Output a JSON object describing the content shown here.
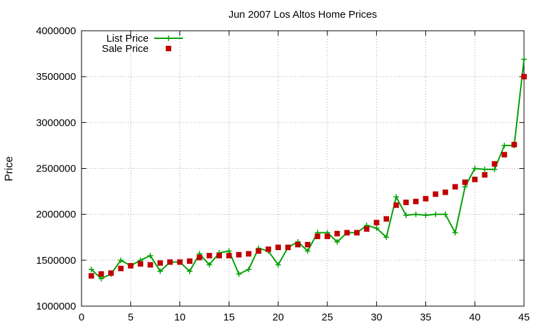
{
  "chart_data": {
    "type": "line",
    "title": "Jun 2007 Los Altos Home Prices",
    "xlabel": "",
    "ylabel": "Price",
    "xlim": [
      0,
      45
    ],
    "ylim": [
      1000000,
      4000000
    ],
    "xticks": [
      0,
      5,
      10,
      15,
      20,
      25,
      30,
      35,
      40,
      45
    ],
    "yticks": [
      1000000,
      1500000,
      2000000,
      2500000,
      3000000,
      3500000,
      4000000
    ],
    "grid": true,
    "legend_position": "top-left",
    "series": [
      {
        "name": "List Price",
        "style": "line-with-plus-markers",
        "color": "#00a000",
        "x": [
          1,
          2,
          3,
          4,
          5,
          6,
          7,
          8,
          9,
          10,
          11,
          12,
          13,
          14,
          15,
          16,
          17,
          18,
          19,
          20,
          21,
          22,
          23,
          24,
          25,
          26,
          27,
          28,
          29,
          30,
          31,
          32,
          33,
          34,
          35,
          36,
          37,
          38,
          39,
          40,
          41,
          42,
          43,
          44,
          45
        ],
        "y": [
          1400000,
          1300000,
          1350000,
          1500000,
          1440000,
          1500000,
          1550000,
          1380000,
          1480000,
          1480000,
          1380000,
          1570000,
          1450000,
          1580000,
          1600000,
          1350000,
          1400000,
          1630000,
          1600000,
          1450000,
          1640000,
          1700000,
          1600000,
          1800000,
          1800000,
          1700000,
          1800000,
          1800000,
          1880000,
          1850000,
          1750000,
          2190000,
          1990000,
          2000000,
          1990000,
          2000000,
          2000000,
          1800000,
          2300000,
          2500000,
          2490000,
          2490000,
          2750000,
          2750000,
          3690000
        ]
      },
      {
        "name": "Sale Price",
        "style": "square-markers",
        "color": "#c00000",
        "x": [
          1,
          2,
          3,
          4,
          5,
          6,
          7,
          8,
          9,
          10,
          11,
          12,
          13,
          14,
          15,
          16,
          17,
          18,
          19,
          20,
          21,
          22,
          23,
          24,
          25,
          26,
          27,
          28,
          29,
          30,
          31,
          32,
          33,
          34,
          35,
          36,
          37,
          38,
          39,
          40,
          41,
          42,
          43,
          44,
          45
        ],
        "y": [
          1330000,
          1350000,
          1360000,
          1410000,
          1440000,
          1460000,
          1450000,
          1470000,
          1480000,
          1480000,
          1490000,
          1530000,
          1550000,
          1550000,
          1550000,
          1560000,
          1570000,
          1600000,
          1620000,
          1640000,
          1640000,
          1670000,
          1670000,
          1760000,
          1760000,
          1790000,
          1800000,
          1800000,
          1840000,
          1910000,
          1950000,
          2100000,
          2130000,
          2140000,
          2170000,
          2220000,
          2240000,
          2300000,
          2350000,
          2380000,
          2430000,
          2550000,
          2650000,
          2760000,
          3500000
        ]
      }
    ]
  }
}
